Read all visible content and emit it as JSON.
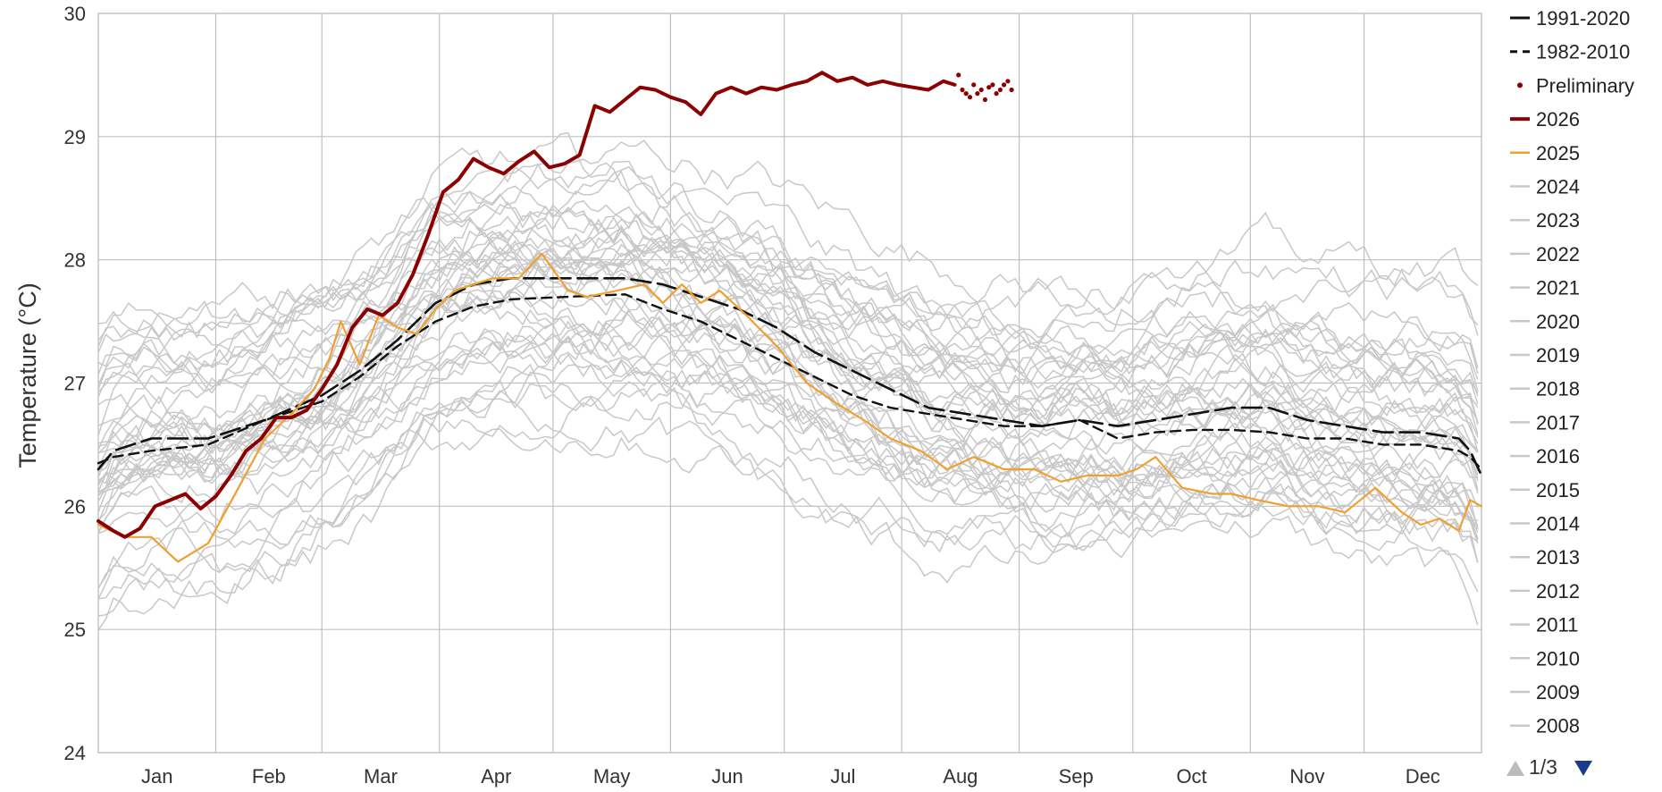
{
  "chart_data": {
    "type": "line",
    "ylabel": "Temperature (°C)",
    "xlabel": "",
    "ylim": [
      24,
      30
    ],
    "yticks": [
      24,
      25,
      26,
      27,
      28,
      29,
      30
    ],
    "x_domain": [
      1,
      366
    ],
    "months": [
      "Jan",
      "Feb",
      "Mar",
      "Apr",
      "May",
      "Jun",
      "Jul",
      "Aug",
      "Sep",
      "Oct",
      "Nov",
      "Dec"
    ],
    "month_starts": [
      1,
      32,
      60,
      91,
      121,
      152,
      182,
      213,
      244,
      274,
      305,
      335,
      366
    ],
    "grid": true,
    "legend_position": "right",
    "legend": {
      "entries": [
        {
          "label": "1991-2020",
          "style": "solid-black"
        },
        {
          "label": "1982-2010",
          "style": "dashed-black"
        },
        {
          "label": "Preliminary",
          "style": "dots-darkred"
        },
        {
          "label": "2026",
          "style": "thick-darkred"
        },
        {
          "label": "2025",
          "style": "orange"
        },
        {
          "label": "2024",
          "style": "gray"
        },
        {
          "label": "2023",
          "style": "gray"
        },
        {
          "label": "2022",
          "style": "gray"
        },
        {
          "label": "2021",
          "style": "gray"
        },
        {
          "label": "2020",
          "style": "gray"
        },
        {
          "label": "2019",
          "style": "gray"
        },
        {
          "label": "2018",
          "style": "gray"
        },
        {
          "label": "2017",
          "style": "gray"
        },
        {
          "label": "2016",
          "style": "gray"
        },
        {
          "label": "2015",
          "style": "gray"
        },
        {
          "label": "2014",
          "style": "gray"
        },
        {
          "label": "2013",
          "style": "gray"
        },
        {
          "label": "2012",
          "style": "gray"
        },
        {
          "label": "2011",
          "style": "gray"
        },
        {
          "label": "2010",
          "style": "gray"
        },
        {
          "label": "2009",
          "style": "gray"
        },
        {
          "label": "2008",
          "style": "gray"
        }
      ],
      "page_label": "1/3"
    },
    "colors": {
      "2026": "#8b0000",
      "2025": "#f0a030",
      "climatology": "#111111",
      "gray_years": "#c8c8c8",
      "grid": "#c0c0c0",
      "pager_active": "#1a3a8c",
      "pager_inactive": "#bbbbbb"
    },
    "series": [
      {
        "name": "1991-2020",
        "style": "longdash",
        "x": [
          1,
          5,
          15,
          30,
          45,
          60,
          70,
          80,
          90,
          100,
          110,
          125,
          140,
          150,
          160,
          170,
          180,
          190,
          200,
          210,
          220,
          230,
          240,
          250,
          260,
          270,
          280,
          290,
          300,
          310,
          320,
          330,
          340,
          350,
          360,
          363,
          366
        ],
        "y": [
          26.3,
          26.45,
          26.55,
          26.55,
          26.7,
          26.9,
          27.1,
          27.35,
          27.65,
          27.8,
          27.85,
          27.85,
          27.85,
          27.8,
          27.7,
          27.6,
          27.45,
          27.25,
          27.1,
          26.95,
          26.8,
          26.75,
          26.7,
          26.65,
          26.7,
          26.65,
          26.7,
          26.75,
          26.8,
          26.8,
          26.7,
          26.65,
          26.6,
          26.6,
          26.55,
          26.45,
          26.25
        ]
      },
      {
        "name": "1982-2010",
        "style": "dash",
        "x": [
          1,
          5,
          15,
          30,
          45,
          60,
          70,
          80,
          90,
          100,
          110,
          125,
          140,
          150,
          160,
          170,
          180,
          190,
          200,
          210,
          220,
          230,
          240,
          250,
          260,
          270,
          280,
          290,
          300,
          310,
          320,
          330,
          340,
          350,
          360,
          363,
          366
        ],
        "y": [
          26.35,
          26.4,
          26.45,
          26.5,
          26.7,
          26.85,
          27.05,
          27.3,
          27.5,
          27.62,
          27.68,
          27.7,
          27.72,
          27.6,
          27.5,
          27.35,
          27.2,
          27.05,
          26.9,
          26.8,
          26.75,
          26.7,
          26.65,
          26.65,
          26.7,
          26.55,
          26.6,
          26.62,
          26.62,
          26.6,
          26.55,
          26.55,
          26.5,
          26.5,
          26.45,
          26.4,
          26.3
        ]
      },
      {
        "name": "2025",
        "x": [
          1,
          8,
          15,
          22,
          30,
          38,
          45,
          52,
          58,
          62,
          65,
          70,
          75,
          80,
          85,
          90,
          95,
          100,
          105,
          112,
          118,
          125,
          130,
          138,
          145,
          150,
          155,
          160,
          165,
          172,
          180,
          188,
          195,
          203,
          210,
          218,
          225,
          232,
          240,
          248,
          255,
          262,
          270,
          275,
          280,
          287,
          295,
          300,
          307,
          315,
          323,
          330,
          338,
          345,
          350,
          355,
          360,
          363,
          366
        ],
        "y": [
          25.85,
          25.75,
          25.75,
          25.55,
          25.7,
          26.15,
          26.55,
          26.75,
          26.95,
          27.2,
          27.5,
          27.15,
          27.55,
          27.45,
          27.4,
          27.6,
          27.75,
          27.8,
          27.85,
          27.85,
          28.05,
          27.75,
          27.7,
          27.75,
          27.8,
          27.65,
          27.8,
          27.65,
          27.75,
          27.55,
          27.3,
          27.0,
          26.85,
          26.7,
          26.55,
          26.45,
          26.3,
          26.4,
          26.3,
          26.3,
          26.2,
          26.25,
          26.25,
          26.3,
          26.4,
          26.15,
          26.1,
          26.1,
          26.05,
          26.0,
          26.0,
          25.95,
          26.15,
          25.95,
          25.85,
          25.9,
          25.8,
          26.05,
          26.0
        ]
      },
      {
        "name": "2026",
        "x": [
          1,
          5,
          8,
          12,
          16,
          20,
          24,
          28,
          32,
          36,
          40,
          44,
          48,
          52,
          56,
          60,
          64,
          68,
          72,
          76,
          80,
          84,
          88,
          92,
          96,
          100,
          104,
          108,
          112,
          116,
          120,
          124,
          128,
          132,
          136,
          140,
          144,
          148,
          152,
          156,
          160,
          164,
          168,
          172,
          176,
          180,
          184,
          188,
          192,
          196,
          200,
          204,
          208,
          212,
          216,
          220,
          224,
          227
        ],
        "y": [
          25.88,
          25.8,
          25.75,
          25.82,
          26.0,
          26.05,
          26.1,
          25.98,
          26.08,
          26.25,
          26.45,
          26.55,
          26.72,
          26.72,
          26.78,
          26.95,
          27.15,
          27.45,
          27.6,
          27.55,
          27.65,
          27.88,
          28.2,
          28.55,
          28.65,
          28.82,
          28.75,
          28.7,
          28.8,
          28.88,
          28.75,
          28.78,
          28.85,
          29.25,
          29.2,
          29.3,
          29.4,
          29.38,
          29.32,
          29.28,
          29.18,
          29.35,
          29.4,
          29.35,
          29.4,
          29.38,
          29.42,
          29.45,
          29.52,
          29.45,
          29.48,
          29.42,
          29.45,
          29.42,
          29.4,
          29.38,
          29.45,
          29.42
        ]
      },
      {
        "name": "Preliminary",
        "style": "dots",
        "x": [
          228,
          229,
          230,
          231,
          232,
          233,
          234,
          235,
          236,
          237,
          238,
          239,
          240,
          241,
          242
        ],
        "y": [
          29.5,
          29.38,
          29.35,
          29.32,
          29.42,
          29.35,
          29.38,
          29.3,
          29.4,
          29.42,
          29.35,
          29.38,
          29.42,
          29.45,
          29.38
        ]
      }
    ],
    "background_years_count": 44
  }
}
